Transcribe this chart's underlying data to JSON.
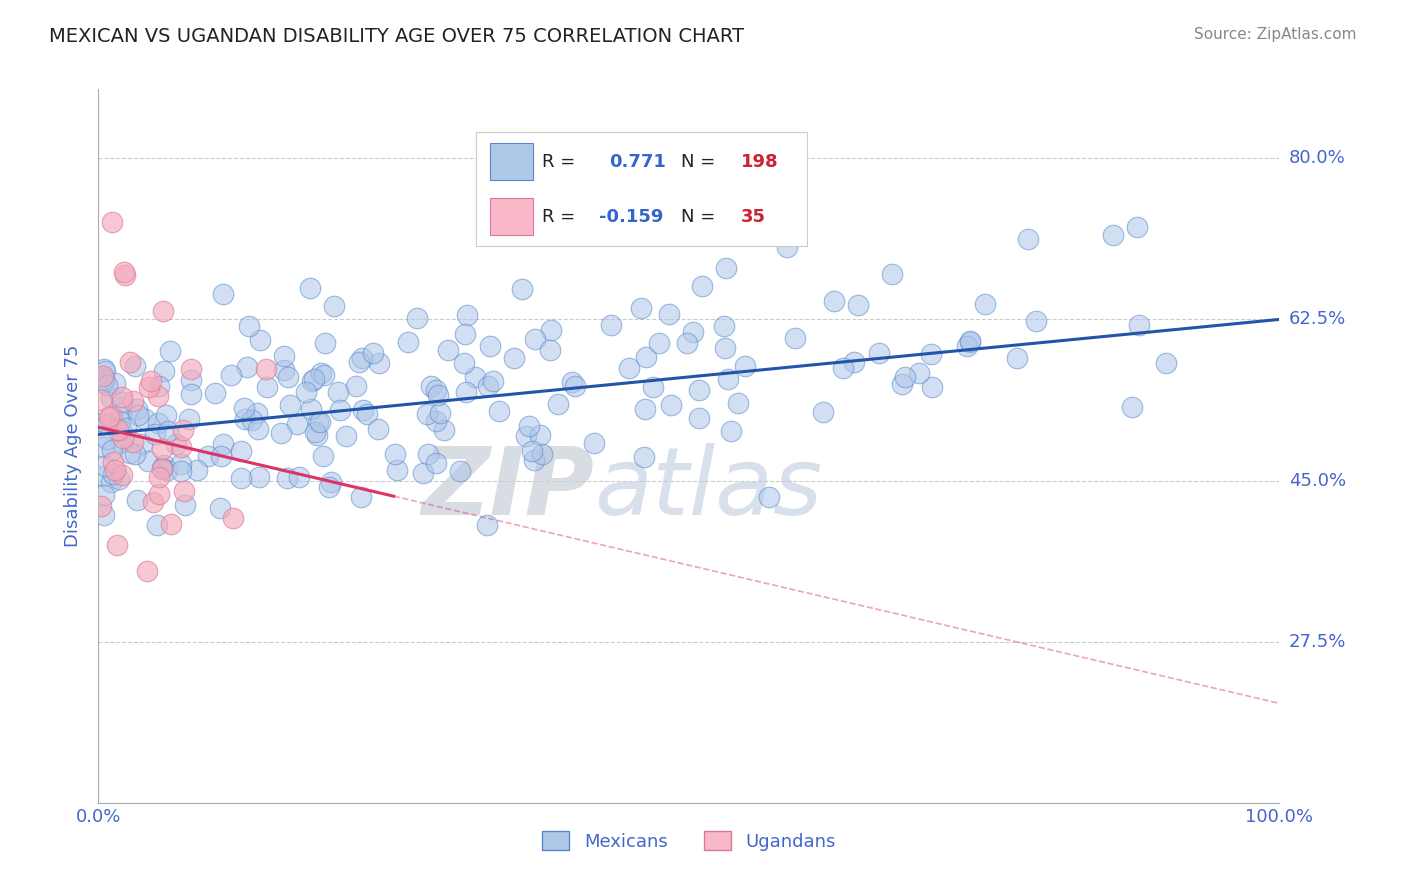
{
  "title": "MEXICAN VS UGANDAN DISABILITY AGE OVER 75 CORRELATION CHART",
  "source_text": "Source: ZipAtlas.com",
  "ylabel": "Disability Age Over 75",
  "xlim": [
    0.0,
    1.0
  ],
  "ylim": [
    0.1,
    0.875
  ],
  "yticks": [
    0.275,
    0.45,
    0.625,
    0.8
  ],
  "ytick_labels": [
    "27.5%",
    "45.0%",
    "62.5%",
    "80.0%"
  ],
  "xtick_labels": [
    "0.0%",
    "100.0%"
  ],
  "blue_R": 0.771,
  "blue_N": 198,
  "pink_R": -0.159,
  "pink_N": 35,
  "blue_color": "#aec6e8",
  "blue_edge": "#5588cc",
  "pink_color": "#f4aabb",
  "pink_edge": "#dd7799",
  "blue_line_color": "#2255aa",
  "pink_line_color": "#dd3366",
  "legend_blue_fill": "#b0c8e8",
  "legend_pink_fill": "#f8b8c8",
  "text_dark": "#222222",
  "text_blue": "#3366cc",
  "text_red": "#cc2233",
  "axis_color": "#4466cc",
  "grid_color": "#cccccc",
  "watermark_color": "#dce6f0",
  "watermark_text": "ZIPatlas",
  "background_color": "#ffffff",
  "blue_scatter_seed": 42,
  "pink_scatter_seed": 7,
  "blue_intercept": 0.5,
  "blue_slope": 0.125,
  "pink_intercept": 0.508,
  "pink_slope": -0.3
}
